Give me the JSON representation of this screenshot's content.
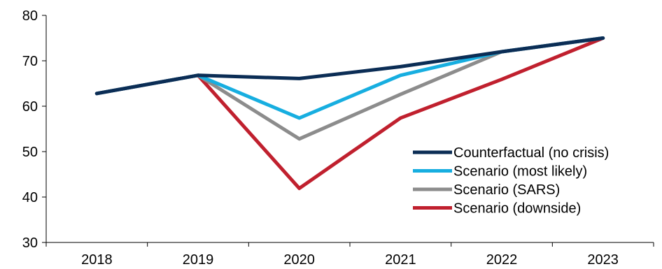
{
  "chart_data": {
    "type": "line",
    "title": "",
    "xlabel": "",
    "ylabel": "",
    "categories": [
      "2018",
      "2019",
      "2020",
      "2021",
      "2022",
      "2023"
    ],
    "ylim": [
      30,
      80
    ],
    "yticks": [
      "30",
      "40",
      "50",
      "60",
      "70",
      "80"
    ],
    "grid": false,
    "legend_position": "bottom-right",
    "series": [
      {
        "name": "Counterfactual (no crisis)",
        "color": "#0b2d55",
        "values": [
          62.8,
          66.8,
          66.1,
          68.7,
          72.0,
          75.0
        ]
      },
      {
        "name": "Scenario (most likely)",
        "color": "#17aee0",
        "values": [
          62.8,
          66.8,
          57.4,
          66.8,
          72.0,
          75.0
        ]
      },
      {
        "name": "Scenario (SARS)",
        "color": "#8c8c8c",
        "values": [
          62.8,
          66.8,
          52.8,
          62.6,
          72.0,
          75.0
        ]
      },
      {
        "name": "Scenario (downside)",
        "color": "#c0202e",
        "values": [
          62.8,
          66.8,
          41.9,
          57.4,
          65.9,
          75.0
        ]
      }
    ]
  }
}
